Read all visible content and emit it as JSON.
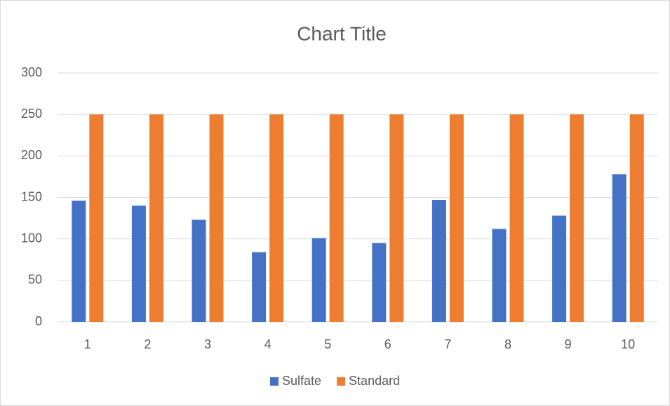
{
  "chart_data": {
    "type": "bar",
    "title": "Chart Title",
    "categories": [
      "1",
      "2",
      "3",
      "4",
      "5",
      "6",
      "7",
      "8",
      "9",
      "10"
    ],
    "series": [
      {
        "name": "Sulfate",
        "color": "#4472c4",
        "values": [
          146,
          140,
          123,
          84,
          101,
          95,
          147,
          112,
          128,
          178
        ]
      },
      {
        "name": "Standard",
        "color": "#ed7d31",
        "values": [
          250,
          250,
          250,
          250,
          250,
          250,
          250,
          250,
          250,
          250
        ]
      }
    ],
    "ylim": [
      0,
      300
    ],
    "yticks": [
      0,
      50,
      100,
      150,
      200,
      250,
      300
    ],
    "grid": true,
    "legend": "bottom"
  }
}
